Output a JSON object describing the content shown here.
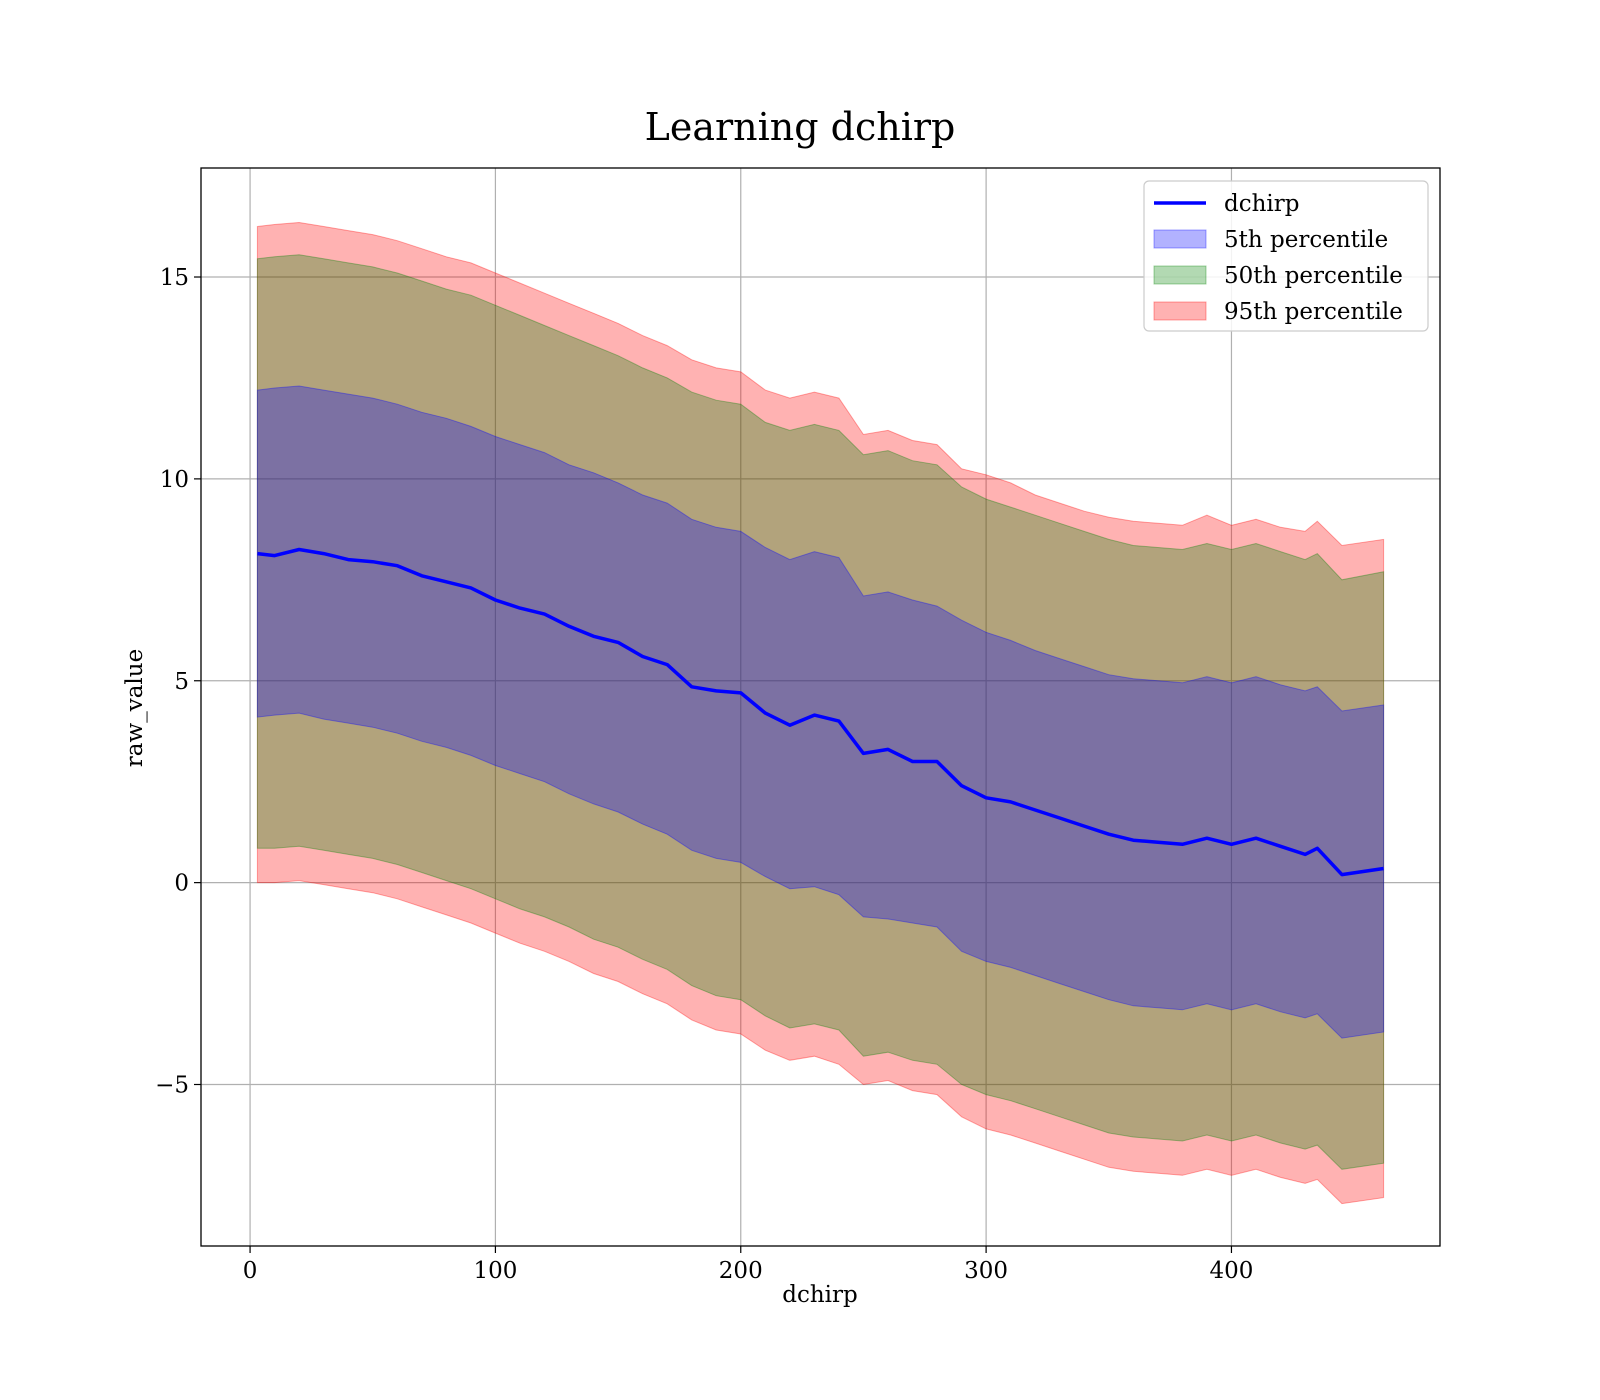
{
  "chart_data": {
    "type": "area",
    "title": "Learning dchirp",
    "xlabel": "dchirp",
    "ylabel": "raw_value",
    "xlim": [
      -20,
      485
    ],
    "ylim": [
      -9.0,
      17.7
    ],
    "grid": true,
    "legend_position": "top-right",
    "x_ticks": [
      0,
      100,
      200,
      300,
      400
    ],
    "x_tick_labels": [
      "0",
      "100",
      "200",
      "300",
      "400"
    ],
    "y_ticks": [
      -5,
      0,
      5,
      10,
      15
    ],
    "y_tick_labels": [
      "−5",
      "0",
      "5",
      "10",
      "15"
    ],
    "x": [
      3,
      10,
      20,
      30,
      40,
      50,
      60,
      70,
      80,
      90,
      100,
      110,
      120,
      130,
      140,
      150,
      160,
      170,
      180,
      190,
      200,
      210,
      220,
      230,
      240,
      250,
      260,
      270,
      280,
      290,
      300,
      310,
      320,
      330,
      340,
      350,
      360,
      370,
      380,
      390,
      400,
      410,
      420,
      430,
      435,
      445,
      462
    ],
    "series": [
      {
        "name": "dchirp",
        "kind": "line",
        "color": "#0000ff",
        "values": [
          8.15,
          8.1,
          8.25,
          8.15,
          8.0,
          7.95,
          7.85,
          7.6,
          7.45,
          7.3,
          7.0,
          6.8,
          6.65,
          6.35,
          6.1,
          5.95,
          5.6,
          5.4,
          4.85,
          4.75,
          4.7,
          4.2,
          3.9,
          4.15,
          4.0,
          3.2,
          3.3,
          3.0,
          3.0,
          2.4,
          2.1,
          2.0,
          1.8,
          1.6,
          1.4,
          1.2,
          1.05,
          1.0,
          0.95,
          1.1,
          0.95,
          1.1,
          0.9,
          0.7,
          0.85,
          0.2,
          0.35
        ]
      },
      {
        "name": "5th percentile",
        "kind": "band",
        "color": "#0000ff",
        "lower": [
          4.1,
          4.15,
          4.2,
          4.05,
          3.95,
          3.85,
          3.7,
          3.5,
          3.35,
          3.15,
          2.9,
          2.7,
          2.5,
          2.2,
          1.95,
          1.75,
          1.45,
          1.2,
          0.8,
          0.6,
          0.5,
          0.15,
          -0.15,
          -0.1,
          -0.3,
          -0.85,
          -0.9,
          -1.0,
          -1.1,
          -1.7,
          -1.95,
          -2.1,
          -2.3,
          -2.5,
          -2.7,
          -2.9,
          -3.05,
          -3.1,
          -3.15,
          -3.0,
          -3.15,
          -3.0,
          -3.2,
          -3.35,
          -3.25,
          -3.85,
          -3.7
        ],
        "upper": [
          12.2,
          12.25,
          12.3,
          12.2,
          12.1,
          12.0,
          11.85,
          11.65,
          11.5,
          11.3,
          11.05,
          10.85,
          10.65,
          10.35,
          10.15,
          9.9,
          9.6,
          9.4,
          9.0,
          8.8,
          8.7,
          8.3,
          8.0,
          8.2,
          8.05,
          7.1,
          7.2,
          7.0,
          6.85,
          6.5,
          6.2,
          6.0,
          5.75,
          5.55,
          5.35,
          5.15,
          5.05,
          5.0,
          4.95,
          5.1,
          4.95,
          5.1,
          4.9,
          4.75,
          4.85,
          4.25,
          4.4
        ]
      },
      {
        "name": "50th percentile",
        "kind": "band",
        "color": "#008000",
        "lower": [
          0.85,
          0.85,
          0.9,
          0.8,
          0.7,
          0.6,
          0.45,
          0.25,
          0.05,
          -0.15,
          -0.4,
          -0.65,
          -0.85,
          -1.1,
          -1.4,
          -1.6,
          -1.9,
          -2.15,
          -2.55,
          -2.8,
          -2.9,
          -3.3,
          -3.6,
          -3.5,
          -3.65,
          -4.3,
          -4.2,
          -4.4,
          -4.5,
          -5.0,
          -5.25,
          -5.4,
          -5.6,
          -5.8,
          -6.0,
          -6.2,
          -6.3,
          -6.35,
          -6.4,
          -6.25,
          -6.4,
          -6.25,
          -6.45,
          -6.6,
          -6.5,
          -7.1,
          -6.95
        ],
        "upper": [
          15.45,
          15.5,
          15.55,
          15.45,
          15.35,
          15.25,
          15.1,
          14.9,
          14.7,
          14.55,
          14.3,
          14.05,
          13.8,
          13.55,
          13.3,
          13.05,
          12.75,
          12.5,
          12.15,
          11.95,
          11.85,
          11.4,
          11.2,
          11.35,
          11.2,
          10.6,
          10.7,
          10.45,
          10.35,
          9.8,
          9.5,
          9.3,
          9.1,
          8.9,
          8.7,
          8.5,
          8.35,
          8.3,
          8.25,
          8.4,
          8.25,
          8.4,
          8.2,
          8.0,
          8.15,
          7.5,
          7.7
        ]
      },
      {
        "name": "95th percentile",
        "kind": "band",
        "color": "#ff0000",
        "lower": [
          0.0,
          0.0,
          0.05,
          -0.05,
          -0.15,
          -0.25,
          -0.4,
          -0.6,
          -0.8,
          -1.0,
          -1.25,
          -1.5,
          -1.7,
          -1.95,
          -2.25,
          -2.45,
          -2.75,
          -3.0,
          -3.4,
          -3.65,
          -3.75,
          -4.15,
          -4.4,
          -4.3,
          -4.5,
          -5.0,
          -4.9,
          -5.15,
          -5.25,
          -5.8,
          -6.1,
          -6.25,
          -6.45,
          -6.65,
          -6.85,
          -7.05,
          -7.15,
          -7.2,
          -7.25,
          -7.1,
          -7.25,
          -7.1,
          -7.3,
          -7.45,
          -7.35,
          -7.95,
          -7.8
        ],
        "upper": [
          16.25,
          16.3,
          16.35,
          16.25,
          16.15,
          16.05,
          15.9,
          15.7,
          15.5,
          15.35,
          15.1,
          14.85,
          14.6,
          14.35,
          14.1,
          13.85,
          13.55,
          13.3,
          12.95,
          12.75,
          12.65,
          12.2,
          12.0,
          12.15,
          12.0,
          11.1,
          11.2,
          10.95,
          10.85,
          10.25,
          10.1,
          9.9,
          9.6,
          9.4,
          9.2,
          9.05,
          8.95,
          8.9,
          8.85,
          9.1,
          8.85,
          9.0,
          8.8,
          8.7,
          8.95,
          8.35,
          8.5
        ]
      }
    ],
    "legend": [
      "dchirp",
      "5th percentile",
      "50th percentile",
      "95th percentile"
    ]
  }
}
